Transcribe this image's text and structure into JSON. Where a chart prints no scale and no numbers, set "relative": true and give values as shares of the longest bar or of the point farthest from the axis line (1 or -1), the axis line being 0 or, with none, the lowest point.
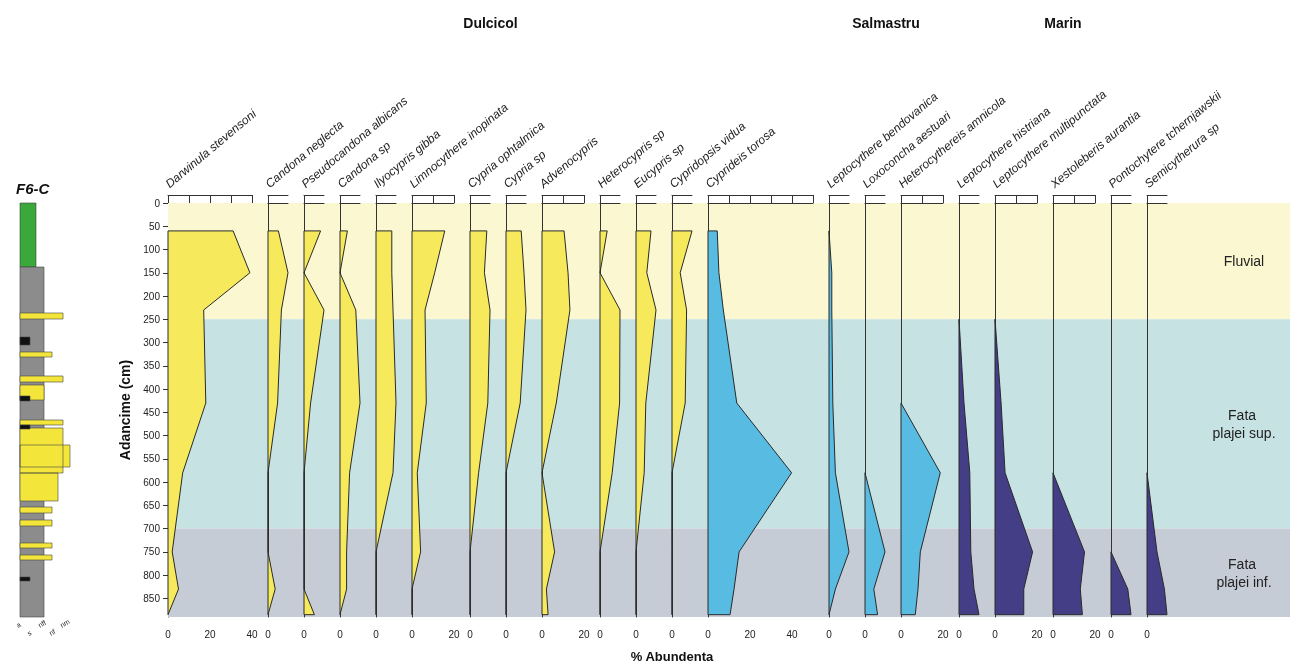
{
  "chart_data": [
    {
      "type": "other",
      "title": "F6-C",
      "annotations": [
        "a",
        "s",
        "nff",
        "nf",
        "nm"
      ]
    },
    {
      "type": "area",
      "orientation": "horizontal",
      "title": "Darwinula stevensoni",
      "ylabel": "Adancime (cm)",
      "annotations": [
        "Dulcicol"
      ],
      "ylim": [
        890,
        0
      ],
      "yticks": [
        0,
        50,
        100,
        150,
        200,
        250,
        300,
        350,
        400,
        450,
        500,
        550,
        600,
        650,
        700,
        750,
        800,
        850
      ],
      "xlim": [
        0,
        40
      ],
      "xticks": [
        0,
        {
          "value": 10,
          "label": null
        },
        20,
        {
          "value": 30,
          "label": null
        },
        40
      ],
      "bands": [
        {
          "axis": "y",
          "from": 0,
          "to": 250,
          "label": "Fluvial",
          "color": "#fbf7d0"
        },
        {
          "axis": "y",
          "from": 250,
          "to": 700,
          "label": "Fata plajei sup.",
          "color": "#c6e2e3"
        },
        {
          "axis": "y",
          "from": 700,
          "to": 890,
          "label": "Fata plajei inf.",
          "color": "#c5ccd6"
        }
      ],
      "x": [
        60,
        150,
        230,
        430,
        580,
        750,
        830,
        885
      ],
      "series": [
        {
          "color": "#f6ea5c",
          "values": [
            31,
            39,
            17,
            18,
            7,
            2,
            5,
            0
          ]
        }
      ]
    },
    {
      "type": "area",
      "orientation": "horizontal",
      "relative": true,
      "title": "Candona neglecta",
      "annotations": [
        "0"
      ],
      "tick_labels": "x",
      "ylim": [
        890,
        0
      ],
      "x": [
        60,
        150,
        230,
        430,
        580,
        750,
        830,
        885
      ],
      "series": [
        {
          "color": "#f6ea5c",
          "values": [
            0.52,
            1,
            0.67,
            0.48,
            0,
            0,
            0.36,
            0
          ]
        }
      ]
    },
    {
      "type": "area",
      "orientation": "horizontal",
      "relative": true,
      "title": "Pseudocandona albicans",
      "annotations": [
        "0"
      ],
      "tick_labels": "x",
      "ylim": [
        890,
        0
      ],
      "x": [
        60,
        150,
        230,
        430,
        580,
        750,
        830,
        885
      ],
      "series": [
        {
          "color": "#f6ea5c",
          "values": [
            0.83,
            0,
            1,
            0.33,
            0,
            0,
            0,
            0.52
          ]
        }
      ]
    },
    {
      "type": "area",
      "orientation": "horizontal",
      "relative": true,
      "title": "Candona sp",
      "annotations": [
        "0"
      ],
      "tick_labels": "x",
      "ylim": [
        890,
        0
      ],
      "x": [
        60,
        150,
        230,
        430,
        580,
        750,
        830,
        885
      ],
      "series": [
        {
          "color": "#f6ea5c",
          "values": [
            0.37,
            0,
            0.79,
            1,
            0.48,
            0.33,
            0.33,
            0
          ]
        }
      ]
    },
    {
      "type": "area",
      "orientation": "horizontal",
      "relative": true,
      "title": "Ilyocypris gibba",
      "annotations": [
        "0"
      ],
      "tick_labels": "x",
      "ylim": [
        890,
        0
      ],
      "x": [
        60,
        150,
        230,
        430,
        580,
        750,
        830,
        885
      ],
      "series": [
        {
          "color": "#f6ea5c",
          "values": [
            0.79,
            0.79,
            0.85,
            1,
            0.85,
            0,
            0,
            0
          ]
        }
      ]
    },
    {
      "type": "area",
      "orientation": "horizontal",
      "title": "Limnocythere inopinata",
      "tick_labels": "x",
      "ylim": [
        890,
        0
      ],
      "xlim": [
        0,
        20
      ],
      "xticks": [
        0,
        {
          "value": 10,
          "label": null
        },
        20
      ],
      "x": [
        60,
        150,
        230,
        430,
        580,
        750,
        830,
        885
      ],
      "series": [
        {
          "color": "#f6ea5c",
          "values": [
            15.6,
            10.8,
            6.2,
            6.8,
            2.5,
            4.1,
            0,
            0
          ]
        }
      ]
    },
    {
      "type": "area",
      "orientation": "horizontal",
      "relative": true,
      "title": "Cypria ophtalmica",
      "annotations": [
        "0"
      ],
      "tick_labels": "x",
      "ylim": [
        890,
        0
      ],
      "x": [
        60,
        150,
        230,
        430,
        580,
        750,
        830,
        885
      ],
      "series": [
        {
          "color": "#f6ea5c",
          "values": [
            0.84,
            0.72,
            1,
            0.89,
            0.43,
            0,
            0,
            0
          ]
        }
      ]
    },
    {
      "type": "area",
      "orientation": "horizontal",
      "relative": true,
      "title": "Cypria sp",
      "annotations": [
        "0"
      ],
      "tick_labels": "x",
      "ylim": [
        890,
        0
      ],
      "x": [
        60,
        150,
        230,
        430,
        580,
        750,
        830,
        885
      ],
      "series": [
        {
          "color": "#f6ea5c",
          "values": [
            0.76,
            0.9,
            1,
            0.71,
            0,
            0,
            0,
            0
          ]
        }
      ]
    },
    {
      "type": "area",
      "orientation": "horizontal",
      "title": "Advenocypris",
      "tick_labels": "x",
      "ylim": [
        890,
        0
      ],
      "xlim": [
        0,
        20
      ],
      "xticks": [
        0,
        {
          "value": 10,
          "label": null
        },
        20
      ],
      "x": [
        60,
        150,
        230,
        430,
        580,
        750,
        830,
        885
      ],
      "series": [
        {
          "color": "#f6ea5c",
          "values": [
            10.5,
            12.4,
            13.3,
            6.8,
            0,
            6,
            2.1,
            2.9
          ]
        }
      ]
    },
    {
      "type": "area",
      "orientation": "horizontal",
      "relative": true,
      "title": "Heterocypris sp",
      "annotations": [
        "0"
      ],
      "tick_labels": "x",
      "ylim": [
        890,
        0
      ],
      "x": [
        60,
        150,
        230,
        430,
        580,
        750,
        830,
        885
      ],
      "series": [
        {
          "color": "#f6ea5c",
          "values": [
            0.36,
            0,
            1,
            0.98,
            0.61,
            0,
            0,
            0
          ]
        }
      ]
    },
    {
      "type": "area",
      "orientation": "horizontal",
      "relative": true,
      "title": "Eucypris sp",
      "annotations": [
        "0"
      ],
      "tick_labels": "x",
      "ylim": [
        890,
        0
      ],
      "x": [
        60,
        150,
        230,
        430,
        580,
        750,
        830,
        885
      ],
      "series": [
        {
          "color": "#f6ea5c",
          "values": [
            0.75,
            0.54,
            1,
            0.49,
            0.41,
            0,
            0,
            0
          ]
        }
      ]
    },
    {
      "type": "area",
      "orientation": "horizontal",
      "relative": true,
      "title": "Cypridopsis vidua",
      "xlabel": "% Abundenta",
      "annotations": [
        "0"
      ],
      "tick_labels": "x",
      "ylim": [
        890,
        0
      ],
      "x": [
        60,
        150,
        230,
        430,
        580,
        750,
        830,
        885
      ],
      "series": [
        {
          "color": "#f6ea5c",
          "values": [
            1,
            0.41,
            0.73,
            0.66,
            0,
            0,
            0,
            0
          ]
        }
      ]
    },
    {
      "type": "area",
      "orientation": "horizontal",
      "title": "Cyprideis torosa",
      "tick_labels": "x",
      "ylim": [
        890,
        0
      ],
      "xlim": [
        0,
        50
      ],
      "xticks": [
        0,
        {
          "value": 10,
          "label": null
        },
        20,
        {
          "value": 30,
          "label": null
        },
        40,
        {
          "value": 50,
          "label": null
        }
      ],
      "x": [
        60,
        150,
        230,
        430,
        580,
        750,
        830,
        885
      ],
      "series": [
        {
          "color": "#58bbe2",
          "values": [
            4.4,
            5.2,
            7.3,
            13.7,
            39.8,
            14.8,
            12.4,
            10.5
          ]
        }
      ]
    },
    {
      "type": "area",
      "orientation": "horizontal",
      "relative": true,
      "title": "Leptocythere bendovanica",
      "annotations": [
        "Salmastru",
        "0"
      ],
      "tick_labels": "x",
      "ylim": [
        890,
        0
      ],
      "x": [
        60,
        150,
        230,
        430,
        580,
        750,
        830,
        885
      ],
      "series": [
        {
          "color": "#58bbe2",
          "values": [
            0,
            0.14,
            0.14,
            0.19,
            0.32,
            1,
            0.32,
            0
          ]
        }
      ]
    },
    {
      "type": "area",
      "orientation": "horizontal",
      "relative": true,
      "title": "Loxoconcha aestuari",
      "annotations": [
        "0"
      ],
      "tick_labels": "x",
      "ylim": [
        890,
        0
      ],
      "x": [
        580,
        750,
        830,
        885
      ],
      "series": [
        {
          "color": "#58bbe2",
          "values": [
            0,
            1,
            0.44,
            0.63
          ]
        }
      ]
    },
    {
      "type": "area",
      "orientation": "horizontal",
      "title": "Heterocythereis amnicola",
      "tick_labels": "x",
      "ylim": [
        890,
        0
      ],
      "xlim": [
        0,
        20
      ],
      "xticks": [
        0,
        {
          "value": 10,
          "label": null
        },
        20
      ],
      "x": [
        430,
        580,
        750,
        830,
        885
      ],
      "series": [
        {
          "color": "#58bbe2",
          "values": [
            0,
            18.7,
            9.2,
            8.1,
            6.8
          ]
        }
      ]
    },
    {
      "type": "area",
      "orientation": "horizontal",
      "relative": true,
      "title": "Leptocythere histriana",
      "annotations": [
        "Marin",
        "0"
      ],
      "tick_labels": "x",
      "ylim": [
        890,
        0
      ],
      "x": [
        250,
        430,
        580,
        750,
        830,
        885
      ],
      "series": [
        {
          "color": "#433e86",
          "values": [
            0,
            0.25,
            0.54,
            0.59,
            0.75,
            1
          ]
        }
      ]
    },
    {
      "type": "area",
      "orientation": "horizontal",
      "title": "Leptocythere multipunctata",
      "tick_labels": "x",
      "ylim": [
        890,
        0
      ],
      "xlim": [
        0,
        20
      ],
      "xticks": [
        0,
        {
          "value": 10,
          "label": null
        },
        20
      ],
      "x": [
        250,
        430,
        580,
        750,
        830,
        885
      ],
      "series": [
        {
          "color": "#433e86",
          "values": [
            0,
            2.9,
            4.8,
            17.9,
            13.7,
            13.7
          ]
        }
      ]
    },
    {
      "type": "area",
      "orientation": "horizontal",
      "title": "Xestoleberis aurantia",
      "tick_labels": "x",
      "ylim": [
        890,
        0
      ],
      "xlim": [
        0,
        20
      ],
      "xticks": [
        0,
        {
          "value": 10,
          "label": null
        },
        20
      ],
      "x": [
        580,
        750,
        830,
        885
      ],
      "series": [
        {
          "color": "#433e86",
          "values": [
            0,
            15,
            13,
            14
          ]
        }
      ]
    },
    {
      "type": "area",
      "orientation": "horizontal",
      "relative": true,
      "title": "Pontochytere tchernjawskii",
      "annotations": [
        "0"
      ],
      "tick_labels": "x",
      "ylim": [
        890,
        0
      ],
      "x": [
        750,
        830,
        885
      ],
      "series": [
        {
          "color": "#433e86",
          "values": [
            0,
            0.84,
            1
          ]
        }
      ]
    },
    {
      "type": "area",
      "orientation": "horizontal",
      "relative": true,
      "title": "Semicytherura sp",
      "annotations": [
        "0"
      ],
      "tick_labels": "x",
      "ylim": [
        890,
        0
      ],
      "x": [
        580,
        750,
        830,
        885
      ],
      "series": [
        {
          "color": "#433e86",
          "values": [
            0,
            0.5,
            0.87,
            1
          ]
        }
      ]
    }
  ]
}
